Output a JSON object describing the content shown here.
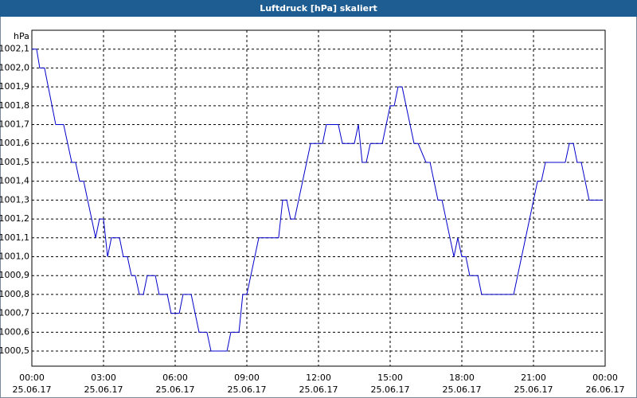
{
  "chart_data": {
    "type": "line",
    "title": "Luftdruck [hPa] skaliert",
    "y_label": "hPa",
    "x": [
      0,
      0.2,
      0.33,
      0.53,
      1,
      1.33,
      1.67,
      1.83,
      2,
      2.17,
      2.67,
      2.83,
      3,
      3.17,
      3.33,
      3.67,
      3.83,
      4,
      4.17,
      4.33,
      4.5,
      4.67,
      4.83,
      5.17,
      5.33,
      5.67,
      5.83,
      6.17,
      6.33,
      6.67,
      7,
      7.33,
      7.5,
      8.17,
      8.33,
      8.67,
      8.83,
      9,
      9.5,
      10.33,
      10.5,
      10.67,
      10.83,
      11,
      11.67,
      12.17,
      12.33,
      12.83,
      13,
      13.5,
      13.67,
      13.83,
      14,
      14.17,
      14.67,
      15,
      15.17,
      15.33,
      15.5,
      16,
      16.17,
      16.5,
      16.67,
      17,
      17.17,
      17.67,
      17.83,
      18,
      18.17,
      18.33,
      18.67,
      18.83,
      20.17,
      21.17,
      21.33,
      21.5,
      22.33,
      22.5,
      22.67,
      22.83,
      23,
      23.33,
      23.9
    ],
    "series": [
      {
        "name": "Luftdruck",
        "color": "#0000cc",
        "values": [
          1002.1,
          1002.1,
          1002.0,
          1002.0,
          1001.7,
          1001.7,
          1001.5,
          1001.5,
          1001.4,
          1001.4,
          1001.1,
          1001.2,
          1001.2,
          1001.0,
          1001.1,
          1001.1,
          1001.0,
          1001.0,
          1000.9,
          1000.9,
          1000.8,
          1000.8,
          1000.9,
          1000.9,
          1000.8,
          1000.8,
          1000.7,
          1000.7,
          1000.8,
          1000.8,
          1000.6,
          1000.6,
          1000.5,
          1000.5,
          1000.6,
          1000.6,
          1000.8,
          1000.8,
          1001.1,
          1001.1,
          1001.3,
          1001.3,
          1001.2,
          1001.2,
          1001.6,
          1001.6,
          1001.7,
          1001.7,
          1001.6,
          1001.6,
          1001.7,
          1001.5,
          1001.5,
          1001.6,
          1001.6,
          1001.8,
          1001.8,
          1001.9,
          1001.9,
          1001.6,
          1001.6,
          1001.5,
          1001.5,
          1001.3,
          1001.3,
          1001.0,
          1001.1,
          1001.0,
          1001.0,
          1000.9,
          1000.9,
          1000.8,
          1000.8,
          1001.4,
          1001.4,
          1001.5,
          1001.5,
          1001.6,
          1001.6,
          1001.5,
          1001.5,
          1001.3,
          1001.3
        ]
      }
    ],
    "xlim": [
      0,
      24
    ],
    "xticks": [
      {
        "value": 0,
        "label": "00:00"
      },
      {
        "value": 3,
        "label": "03:00"
      },
      {
        "value": 6,
        "label": "06:00"
      },
      {
        "value": 9,
        "label": "09:00"
      },
      {
        "value": 12,
        "label": "12:00"
      },
      {
        "value": 15,
        "label": "15:00"
      },
      {
        "value": 18,
        "label": "18:00"
      },
      {
        "value": 21,
        "label": "21:00"
      },
      {
        "value": 24,
        "label": "00:00"
      }
    ],
    "xtick_dates": [
      "25.06.17",
      "25.06.17",
      "25.06.17",
      "25.06.17",
      "25.06.17",
      "25.06.17",
      "25.06.17",
      "25.06.17",
      "26.06.17"
    ],
    "ylim": [
      1000.42,
      1002.2
    ],
    "yticks": [
      {
        "value": 1000.5,
        "label": "1000,5"
      },
      {
        "value": 1000.6,
        "label": "1000,6"
      },
      {
        "value": 1000.7,
        "label": "1000,7"
      },
      {
        "value": 1000.8,
        "label": "1000,8"
      },
      {
        "value": 1000.9,
        "label": "1000,9"
      },
      {
        "value": 1001.0,
        "label": "1001,0"
      },
      {
        "value": 1001.1,
        "label": "1001,1"
      },
      {
        "value": 1001.2,
        "label": "1001,2"
      },
      {
        "value": 1001.3,
        "label": "1001,3"
      },
      {
        "value": 1001.4,
        "label": "1001,4"
      },
      {
        "value": 1001.5,
        "label": "1001,5"
      },
      {
        "value": 1001.6,
        "label": "1001,6"
      },
      {
        "value": 1001.7,
        "label": "1001,7"
      },
      {
        "value": 1001.8,
        "label": "1001,8"
      },
      {
        "value": 1001.9,
        "label": "1001,9"
      },
      {
        "value": 1002.0,
        "label": "1002,0"
      },
      {
        "value": 1002.1,
        "label": "1002,1"
      }
    ],
    "grid": true
  }
}
